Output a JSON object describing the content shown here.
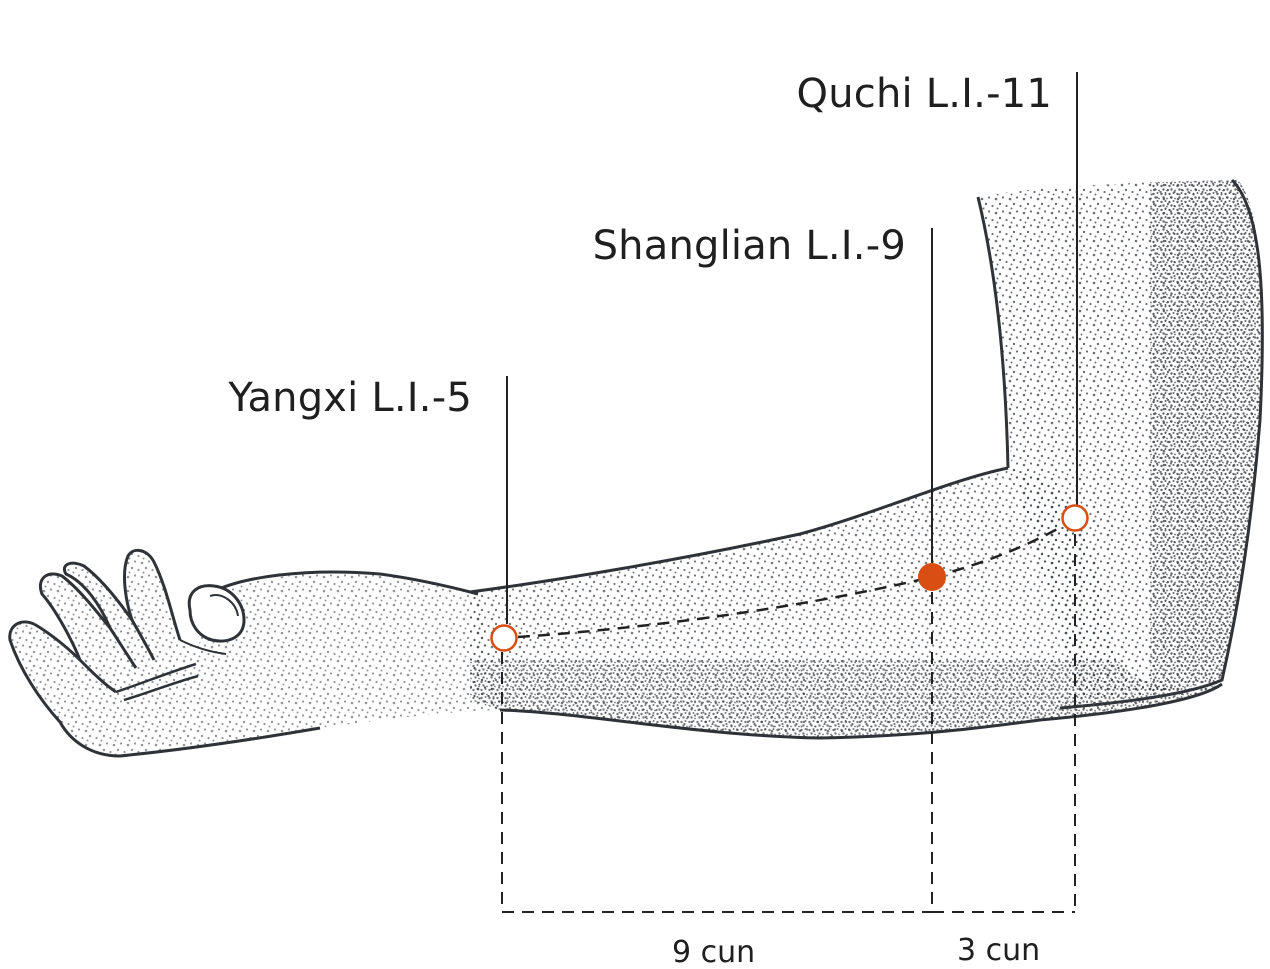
{
  "points": [
    {
      "id": "quchi",
      "label": "Quchi L.I.-11",
      "marker": "hollow"
    },
    {
      "id": "shanglian",
      "label": "Shanglian L.I.-9",
      "marker": "filled"
    },
    {
      "id": "yangxi",
      "label": "Yangxi L.I.-5",
      "marker": "hollow"
    }
  ],
  "distances": [
    {
      "label": "9 cun"
    },
    {
      "label": "3 cun"
    }
  ],
  "colors": {
    "point_accent": "#d94e12",
    "line": "#222222",
    "arm_outline": "#2f3338",
    "stipple": "#3a3f46"
  }
}
